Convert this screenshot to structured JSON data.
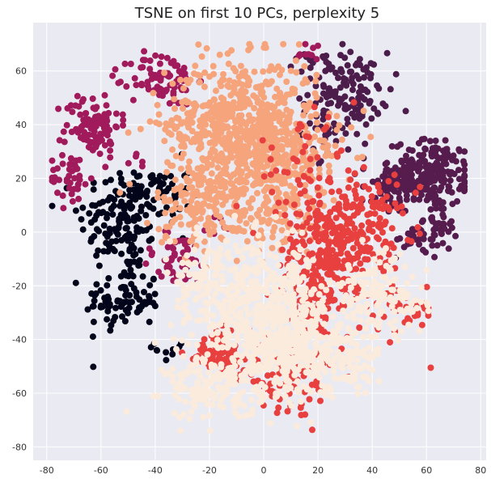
{
  "chart_data": {
    "type": "scatter",
    "title": "TSNE on first 10 PCs, perplexity 5",
    "xlabel": "",
    "ylabel": "",
    "xlim": [
      -85,
      82
    ],
    "ylim": [
      -85,
      78
    ],
    "x_ticks": [
      -80,
      -60,
      -40,
      -20,
      0,
      20,
      40,
      60,
      80
    ],
    "y_ticks": [
      -80,
      -60,
      -40,
      -20,
      0,
      20,
      40,
      60
    ],
    "grid": true,
    "legend": "none",
    "background": "#eaeaf2",
    "grid_color": "#ffffff",
    "series": [
      {
        "color": "#03051a",
        "clusters": [
          {
            "cx": -52,
            "cy": 5,
            "sx": 8,
            "sy": 10,
            "n": 150
          },
          {
            "cx": -52,
            "cy": -25,
            "sx": 7,
            "sy": 6,
            "n": 90
          },
          {
            "cx": -37,
            "cy": 15,
            "sx": 5,
            "sy": 6,
            "n": 40
          },
          {
            "cx": -34,
            "cy": -43,
            "sx": 3,
            "sy": 3,
            "n": 10
          }
        ]
      },
      {
        "color": "#4c1d4b",
        "clusters": [
          {
            "cx": 30,
            "cy": 53,
            "sx": 8,
            "sy": 7,
            "n": 120
          },
          {
            "cx": 26,
            "cy": 38,
            "sx": 6,
            "sy": 5,
            "n": 35
          },
          {
            "cx": 17,
            "cy": 63,
            "sx": 3,
            "sy": 2,
            "n": 10
          }
        ]
      },
      {
        "color": "#561c4d",
        "clusters": [
          {
            "cx": 62,
            "cy": 22,
            "sx": 7,
            "sy": 6,
            "n": 200
          },
          {
            "cx": 48,
            "cy": 16,
            "sx": 6,
            "sy": 5,
            "n": 80
          },
          {
            "cx": 65,
            "cy": 3,
            "sx": 3,
            "sy": 5,
            "n": 40
          },
          {
            "cx": 55,
            "cy": -3,
            "sx": 4,
            "sy": 3,
            "n": 25
          }
        ]
      },
      {
        "color": "#a11a5b",
        "clusters": [
          {
            "cx": -63,
            "cy": 40,
            "sx": 5,
            "sy": 6,
            "n": 100
          },
          {
            "cx": -71,
            "cy": 20,
            "sx": 4,
            "sy": 5,
            "n": 40
          },
          {
            "cx": -37,
            "cy": 57,
            "sx": 6,
            "sy": 5,
            "n": 80
          },
          {
            "cx": -32,
            "cy": -10,
            "sx": 7,
            "sy": 5,
            "n": 50
          },
          {
            "cx": -45,
            "cy": 26,
            "sx": 2,
            "sy": 2,
            "n": 5
          },
          {
            "cx": -18,
            "cy": 3,
            "sx": 3,
            "sy": 2,
            "n": 6
          },
          {
            "cx": 16,
            "cy": 68,
            "sx": 3,
            "sy": 3,
            "n": 10
          }
        ]
      },
      {
        "color": "#f6a47c",
        "clusters": [
          {
            "cx": -8,
            "cy": 40,
            "sx": 14,
            "sy": 12,
            "n": 650
          },
          {
            "cx": 5,
            "cy": 25,
            "sx": 12,
            "sy": 9,
            "n": 200
          },
          {
            "cx": -22,
            "cy": 10,
            "sx": 9,
            "sy": 8,
            "n": 150
          },
          {
            "cx": 5,
            "cy": 5,
            "sx": 10,
            "sy": 7,
            "n": 100
          }
        ]
      },
      {
        "color": "#e83f3f",
        "clusters": [
          {
            "cx": 25,
            "cy": -5,
            "sx": 9,
            "sy": 10,
            "n": 220
          },
          {
            "cx": 20,
            "cy": -25,
            "sx": 6,
            "sy": 8,
            "n": 140
          },
          {
            "cx": 40,
            "cy": 5,
            "sx": 8,
            "sy": 8,
            "n": 90
          },
          {
            "cx": -17,
            "cy": -45,
            "sx": 6,
            "sy": 4,
            "n": 100
          },
          {
            "cx": 10,
            "cy": -55,
            "sx": 9,
            "sy": 6,
            "n": 80
          },
          {
            "cx": 15,
            "cy": 20,
            "sx": 10,
            "sy": 10,
            "n": 60
          },
          {
            "cx": 50,
            "cy": -30,
            "sx": 7,
            "sy": 6,
            "n": 40
          }
        ]
      },
      {
        "color": "#faebdd",
        "clusters": [
          {
            "cx": 0,
            "cy": -30,
            "sx": 12,
            "sy": 12,
            "n": 450
          },
          {
            "cx": 10,
            "cy": -45,
            "sx": 11,
            "sy": 8,
            "n": 250
          },
          {
            "cx": -18,
            "cy": -58,
            "sx": 9,
            "sy": 6,
            "n": 150
          },
          {
            "cx": 42,
            "cy": -25,
            "sx": 9,
            "sy": 8,
            "n": 140
          },
          {
            "cx": -20,
            "cy": -20,
            "sx": 8,
            "sy": 8,
            "n": 100
          },
          {
            "cx": 32,
            "cy": -48,
            "sx": 6,
            "sy": 6,
            "n": 70
          }
        ]
      }
    ]
  }
}
